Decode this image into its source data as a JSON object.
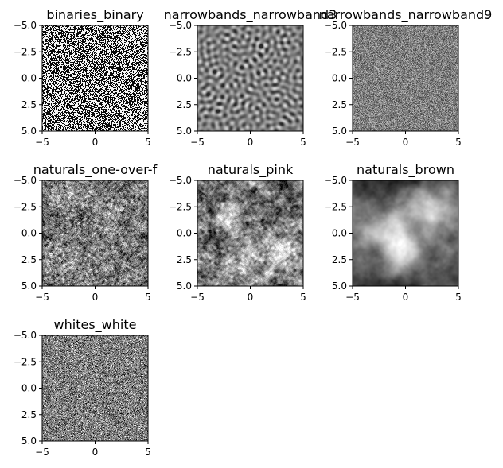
{
  "chart_data": [
    {
      "type": "heatmap",
      "title": "binaries_binary",
      "noise": "binary",
      "colormap": "gray",
      "xlim": [
        -5,
        5
      ],
      "ylim": [
        5,
        -5
      ],
      "xticks": [
        -5,
        0,
        5
      ],
      "yticks": [
        -5.0,
        -2.5,
        0.0,
        2.5,
        5.0
      ],
      "xtick_labels": [
        "−5",
        "0",
        "5"
      ],
      "ytick_labels": [
        "−5.0",
        "−2.5",
        "0.0",
        "2.5",
        "5.0"
      ]
    },
    {
      "type": "heatmap",
      "title": "narrowbands_narrowband3",
      "noise": "narrowband",
      "frequency": 3,
      "colormap": "gray",
      "xlim": [
        -5,
        5
      ],
      "ylim": [
        5,
        -5
      ],
      "xticks": [
        -5,
        0,
        5
      ],
      "yticks": [
        -5.0,
        -2.5,
        0.0,
        2.5,
        5.0
      ],
      "xtick_labels": [
        "−5",
        "0",
        "5"
      ],
      "ytick_labels": [
        "−5.0",
        "−2.5",
        "0.0",
        "2.5",
        "5.0"
      ]
    },
    {
      "type": "heatmap",
      "title": "narrowbands_narrowband9",
      "noise": "narrowband",
      "frequency": 9,
      "colormap": "gray",
      "xlim": [
        -5,
        5
      ],
      "ylim": [
        5,
        -5
      ],
      "xticks": [
        -5,
        0,
        5
      ],
      "yticks": [
        -5.0,
        -2.5,
        0.0,
        2.5,
        5.0
      ],
      "xtick_labels": [
        "−5",
        "0",
        "5"
      ],
      "ytick_labels": [
        "−5.0",
        "−2.5",
        "0.0",
        "2.5",
        "5.0"
      ]
    },
    {
      "type": "heatmap",
      "title": "naturals_one-over-f",
      "noise": "one-over-f",
      "colormap": "gray",
      "xlim": [
        -5,
        5
      ],
      "ylim": [
        5,
        -5
      ],
      "xticks": [
        -5,
        0,
        5
      ],
      "yticks": [
        -5.0,
        -2.5,
        0.0,
        2.5,
        5.0
      ],
      "xtick_labels": [
        "−5",
        "0",
        "5"
      ],
      "ytick_labels": [
        "−5.0",
        "−2.5",
        "0.0",
        "2.5",
        "5.0"
      ]
    },
    {
      "type": "heatmap",
      "title": "naturals_pink",
      "noise": "pink",
      "colormap": "gray",
      "xlim": [
        -5,
        5
      ],
      "ylim": [
        5,
        -5
      ],
      "xticks": [
        -5,
        0,
        5
      ],
      "yticks": [
        -5.0,
        -2.5,
        0.0,
        2.5,
        5.0
      ],
      "xtick_labels": [
        "−5",
        "0",
        "5"
      ],
      "ytick_labels": [
        "−5.0",
        "−2.5",
        "0.0",
        "2.5",
        "5.0"
      ]
    },
    {
      "type": "heatmap",
      "title": "naturals_brown",
      "noise": "brown",
      "colormap": "gray",
      "xlim": [
        -5,
        5
      ],
      "ylim": [
        5,
        -5
      ],
      "xticks": [
        -5,
        0,
        5
      ],
      "yticks": [
        -5.0,
        -2.5,
        0.0,
        2.5,
        5.0
      ],
      "xtick_labels": [
        "−5",
        "0",
        "5"
      ],
      "ytick_labels": [
        "−5.0",
        "−2.5",
        "0.0",
        "2.5",
        "5.0"
      ]
    },
    {
      "type": "heatmap",
      "title": "whites_white",
      "noise": "white",
      "colormap": "gray",
      "xlim": [
        -5,
        5
      ],
      "ylim": [
        5,
        -5
      ],
      "xticks": [
        -5,
        0,
        5
      ],
      "yticks": [
        -5.0,
        -2.5,
        0.0,
        2.5,
        5.0
      ],
      "xtick_labels": [
        "−5",
        "0",
        "5"
      ],
      "ytick_labels": [
        "−5.0",
        "−2.5",
        "0.0",
        "2.5",
        "5.0"
      ]
    }
  ]
}
